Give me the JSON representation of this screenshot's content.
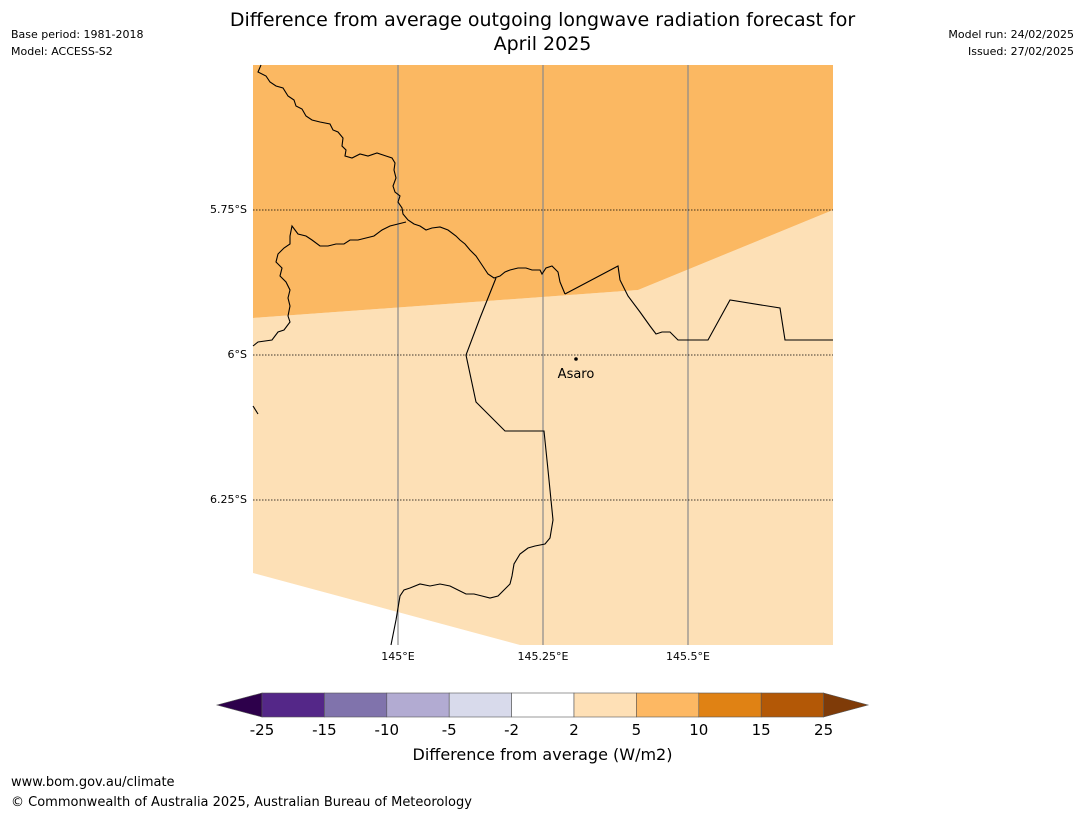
{
  "header": {
    "title_line1": "Difference from average outgoing longwave radiation forecast for",
    "title_line2": "April 2025",
    "base_period": "Base period: 1981-2018",
    "model": "Model: ACCESS-S2",
    "model_run": "Model run: 24/02/2025",
    "issued": "Issued: 27/02/2025"
  },
  "map": {
    "lat_labels": [
      "5.75°S",
      "6°S",
      "6.25°S"
    ],
    "lon_labels": [
      "145°E",
      "145.25°E",
      "145.5°E"
    ],
    "place": "Asaro",
    "region_colors": {
      "upper_5_to_10": "#fbb862",
      "lower_2_to_5": "#fde0b6"
    }
  },
  "colorbar": {
    "title": "Difference from average (W/m2)",
    "ticks": [
      "-25",
      "-15",
      "-10",
      "-5",
      "-2",
      "2",
      "5",
      "10",
      "15",
      "25"
    ],
    "colors": [
      "#2d004b",
      "#542788",
      "#8073ac",
      "#b2abd2",
      "#d8daeb",
      "#ffffff",
      "#fee0b6",
      "#fdb863",
      "#e08214",
      "#b35806",
      "#7f3b08"
    ]
  },
  "footer": {
    "url": "www.bom.gov.au/climate",
    "copyright": "© Commonwealth of Australia 2025, Australian Bureau of Meteorology"
  }
}
